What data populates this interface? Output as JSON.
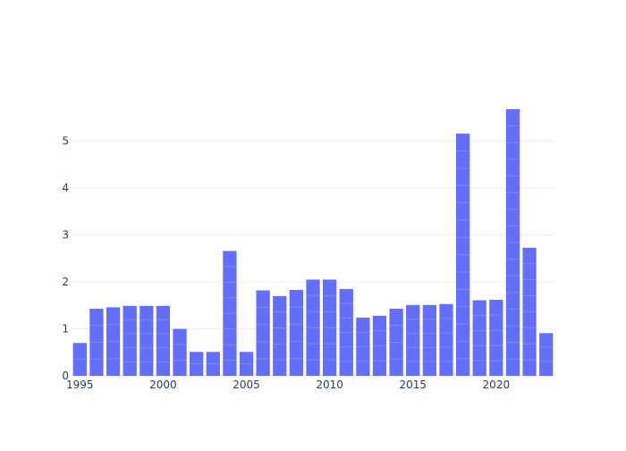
{
  "chart_data": {
    "type": "bar",
    "title": "",
    "xlabel": "",
    "ylabel": "",
    "x": [
      1995,
      1996,
      1997,
      1998,
      1999,
      2000,
      2001,
      2002,
      2003,
      2004,
      2005,
      2006,
      2007,
      2008,
      2009,
      2010,
      2011,
      2012,
      2013,
      2014,
      2015,
      2016,
      2017,
      2018,
      2019,
      2020,
      2021,
      2022,
      2023
    ],
    "values": [
      0.7,
      1.43,
      1.46,
      1.49,
      1.49,
      1.49,
      1.0,
      0.51,
      0.51,
      2.66,
      0.51,
      1.82,
      1.7,
      1.83,
      2.05,
      2.05,
      1.85,
      1.24,
      1.28,
      1.43,
      1.51,
      1.51,
      1.53,
      5.16,
      1.61,
      1.62,
      5.68,
      2.73,
      0.91
    ],
    "xlim": [
      1994.5,
      2023.5
    ],
    "ylim": [
      0,
      6.1
    ],
    "x_ticks": [
      1995,
      2000,
      2005,
      2010,
      2015,
      2020
    ],
    "y_ticks": [
      0,
      1,
      2,
      3,
      4,
      5
    ],
    "grid": true,
    "legend": "none",
    "colors": {
      "bar": "#636efa",
      "grid": "#ebf0f8",
      "text": "#2a3f5f",
      "background": "#ffffff"
    }
  }
}
